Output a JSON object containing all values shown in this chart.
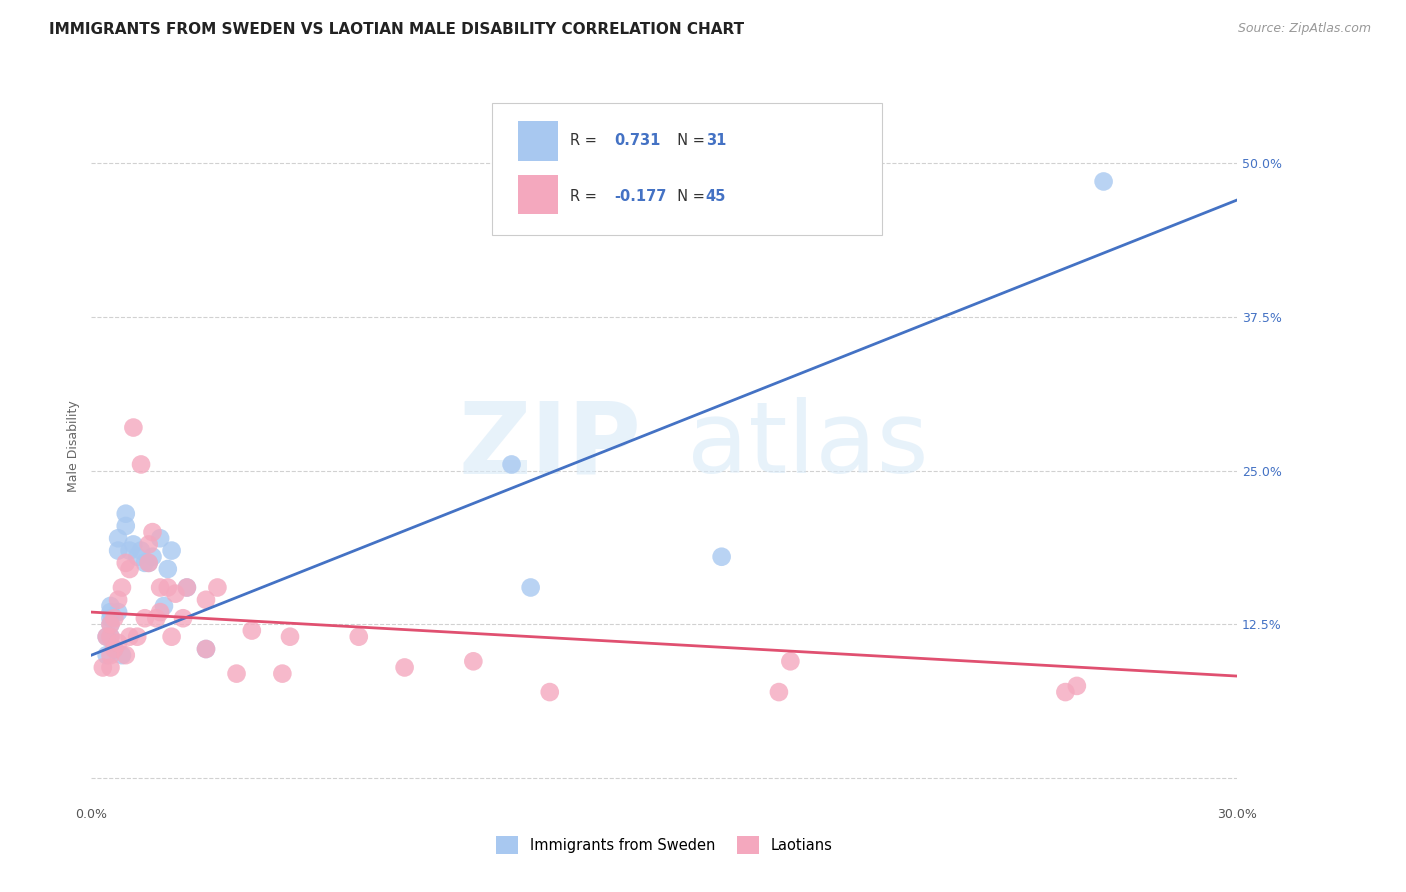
{
  "title": "IMMIGRANTS FROM SWEDEN VS LAOTIAN MALE DISABILITY CORRELATION CHART",
  "source": "Source: ZipAtlas.com",
  "ylabel": "Male Disability",
  "xlim": [
    0.0,
    0.3
  ],
  "ylim": [
    -0.02,
    0.56
  ],
  "ytick_values": [
    0.0,
    0.125,
    0.25,
    0.375,
    0.5
  ],
  "xtick_values": [
    0.0,
    0.05,
    0.1,
    0.15,
    0.2,
    0.25,
    0.3
  ],
  "blue_R": "0.731",
  "blue_N": "31",
  "pink_R": "-0.177",
  "pink_N": "45",
  "blue_scatter_color": "#a8c8f0",
  "pink_scatter_color": "#f4a8be",
  "blue_line_color": "#4472c4",
  "pink_line_color": "#e05070",
  "legend_label_blue": "Immigrants from Sweden",
  "legend_label_pink": "Laotians",
  "watermark_zip": "ZIP",
  "watermark_atlas": "atlas",
  "blue_scatter_x": [
    0.004,
    0.004,
    0.005,
    0.005,
    0.005,
    0.005,
    0.005,
    0.006,
    0.007,
    0.007,
    0.007,
    0.008,
    0.009,
    0.009,
    0.01,
    0.011,
    0.012,
    0.013,
    0.014,
    0.015,
    0.016,
    0.018,
    0.019,
    0.02,
    0.021,
    0.025,
    0.03,
    0.11,
    0.115,
    0.165,
    0.265
  ],
  "blue_scatter_y": [
    0.1,
    0.115,
    0.115,
    0.125,
    0.13,
    0.135,
    0.14,
    0.105,
    0.135,
    0.185,
    0.195,
    0.1,
    0.205,
    0.215,
    0.185,
    0.19,
    0.18,
    0.185,
    0.175,
    0.175,
    0.18,
    0.195,
    0.14,
    0.17,
    0.185,
    0.155,
    0.105,
    0.255,
    0.155,
    0.18,
    0.485
  ],
  "pink_scatter_x": [
    0.003,
    0.004,
    0.005,
    0.005,
    0.005,
    0.005,
    0.006,
    0.006,
    0.007,
    0.007,
    0.008,
    0.009,
    0.009,
    0.01,
    0.01,
    0.011,
    0.012,
    0.013,
    0.014,
    0.015,
    0.015,
    0.016,
    0.017,
    0.018,
    0.018,
    0.02,
    0.021,
    0.022,
    0.024,
    0.025,
    0.03,
    0.03,
    0.033,
    0.038,
    0.042,
    0.05,
    0.052,
    0.07,
    0.082,
    0.1,
    0.12,
    0.18,
    0.183,
    0.255,
    0.258
  ],
  "pink_scatter_y": [
    0.09,
    0.115,
    0.09,
    0.1,
    0.115,
    0.125,
    0.105,
    0.13,
    0.11,
    0.145,
    0.155,
    0.175,
    0.1,
    0.115,
    0.17,
    0.285,
    0.115,
    0.255,
    0.13,
    0.175,
    0.19,
    0.2,
    0.13,
    0.155,
    0.135,
    0.155,
    0.115,
    0.15,
    0.13,
    0.155,
    0.105,
    0.145,
    0.155,
    0.085,
    0.12,
    0.085,
    0.115,
    0.115,
    0.09,
    0.095,
    0.07,
    0.07,
    0.095,
    0.07,
    0.075
  ],
  "blue_line_x": [
    0.0,
    0.3
  ],
  "blue_line_y": [
    0.1,
    0.47
  ],
  "pink_line_x": [
    0.0,
    0.3
  ],
  "pink_line_y": [
    0.135,
    0.083
  ],
  "background_color": "#ffffff",
  "grid_color": "#cccccc",
  "title_fontsize": 11,
  "axis_label_fontsize": 9,
  "tick_fontsize": 9,
  "source_fontsize": 9,
  "legend_value_color": "#4472c4",
  "legend_text_color": "#333333"
}
